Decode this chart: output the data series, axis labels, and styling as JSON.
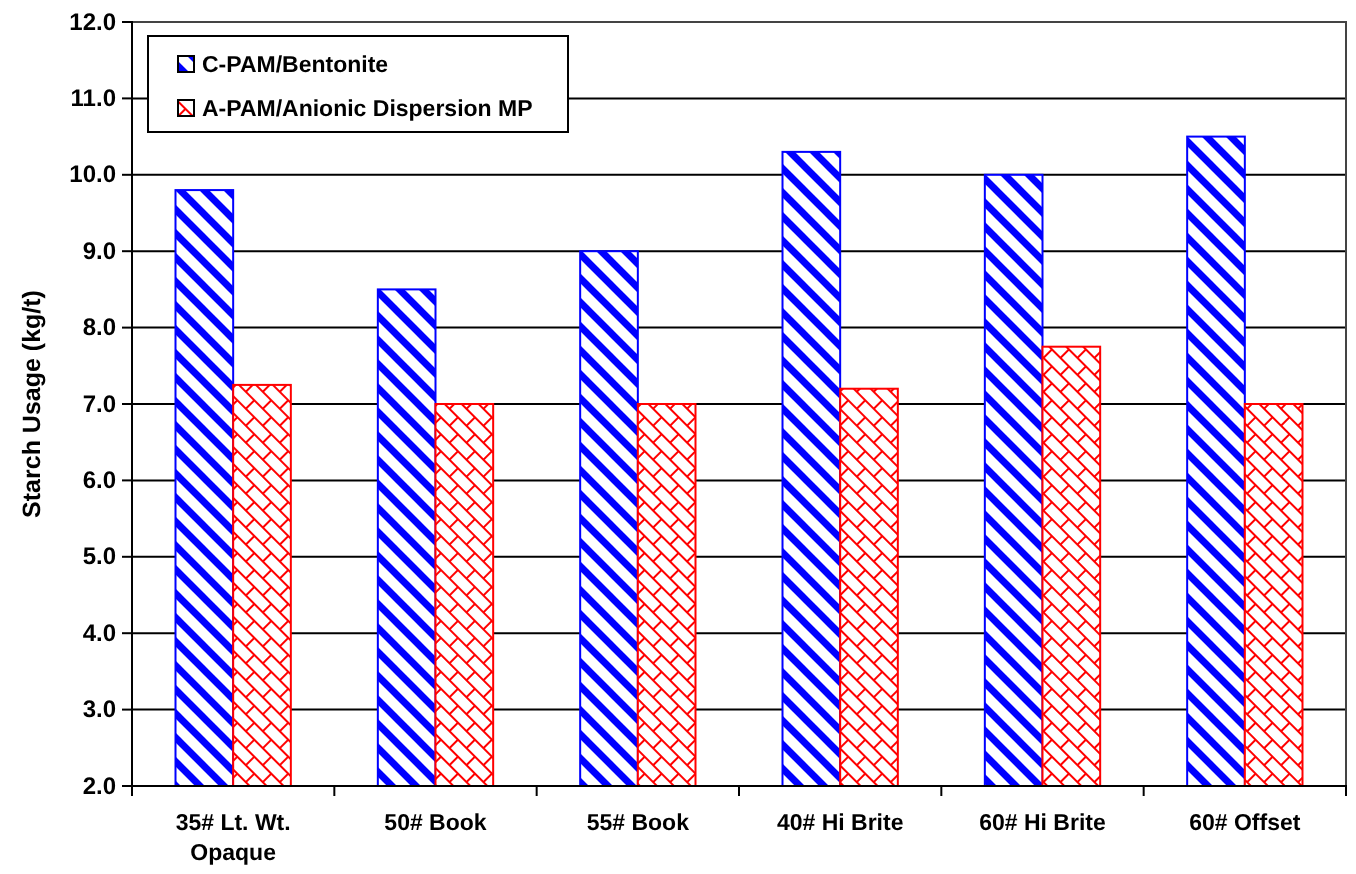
{
  "chart_data": {
    "type": "bar",
    "ylabel": "Starch Usage (kg/t)",
    "categories": [
      "35# Lt. Wt. Opaque",
      "50# Book",
      "55# Book",
      "40# Hi Brite",
      "60# Hi Brite",
      "60# Offset"
    ],
    "series": [
      {
        "name": "C-PAM/Bentonite",
        "color": "#0000ff",
        "values": [
          9.8,
          8.5,
          9.0,
          10.3,
          10.0,
          10.5
        ]
      },
      {
        "name": "A-PAM/Anionic Dispersion MP",
        "color": "#ff0000",
        "values": [
          7.25,
          7.0,
          7.0,
          7.2,
          7.75,
          7.0
        ]
      }
    ],
    "ylim": [
      2,
      12
    ],
    "yticks": [
      {
        "value": 2,
        "label": "2.0"
      },
      {
        "value": 3,
        "label": "3.0"
      },
      {
        "value": 4,
        "label": "4.0"
      },
      {
        "value": 5,
        "label": "5.0"
      },
      {
        "value": 6,
        "label": "6.0"
      },
      {
        "value": 7,
        "label": "7.0"
      },
      {
        "value": 8,
        "label": "8.0"
      },
      {
        "value": 9,
        "label": "9.0"
      },
      {
        "value": 10,
        "label": "10.0"
      },
      {
        "value": 11,
        "label": "11.0"
      },
      {
        "value": 12,
        "label": "12.0"
      }
    ],
    "grid": "y",
    "legend": "top left"
  }
}
